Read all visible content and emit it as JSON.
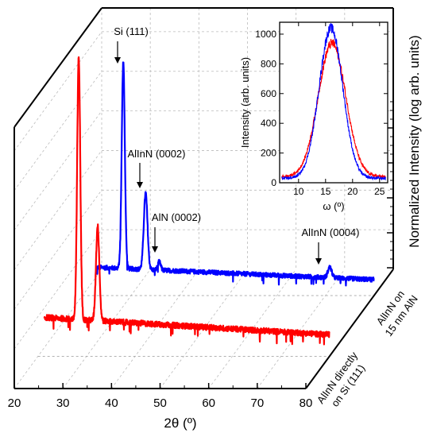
{
  "chart_data": {
    "type": "line",
    "subtype": "3d-waterfall",
    "xlabel": "2θ (º)",
    "ylabel": "Normalized Intensity (log arb. units)",
    "xlim": [
      20,
      80
    ],
    "x_ticks": [
      "20",
      "30",
      "40",
      "50",
      "60",
      "70",
      "80"
    ],
    "grid": true,
    "log_scale_y": true,
    "series": [
      {
        "name": "AlInN directly on Si (111)",
        "label_lines": [
          "AlInN directly",
          "on Si (111)"
        ],
        "color": "#ff0000",
        "baseline_noise": 0.15,
        "peaks": [
          {
            "x": 28.4,
            "height": 1.0,
            "width": 0.32
          },
          {
            "x": 32.3,
            "height": 0.36,
            "width": 0.35
          }
        ]
      },
      {
        "name": "AlInN on 15 nm AlN",
        "label_lines": [
          "AlInN on",
          "15 nm AlN"
        ],
        "color": "#0000ff",
        "baseline_noise": 0.14,
        "peaks": [
          {
            "x": 28.4,
            "height": 1.0,
            "width": 0.32
          },
          {
            "x": 33.0,
            "height": 0.37,
            "width": 0.38
          },
          {
            "x": 35.8,
            "height": 0.04,
            "width": 0.3
          },
          {
            "x": 70.9,
            "height": 0.05,
            "width": 0.4
          }
        ]
      }
    ],
    "annotations": [
      {
        "text": "Si (111)",
        "series": 1,
        "x": 28.4
      },
      {
        "text": "AlInN (0002)",
        "series": 1,
        "x": 33.0
      },
      {
        "text": "AlN (0002)",
        "series": 1,
        "x": 35.8
      },
      {
        "text": "AlInN (0004)",
        "series": 1,
        "x": 70.9
      }
    ],
    "inset": {
      "type": "line",
      "xlabel": "ω (º)",
      "ylabel": "Intensity (arb. units)",
      "xlim": [
        6.5,
        26.5
      ],
      "ylim": [
        0,
        1080
      ],
      "x_ticks": [
        10,
        15,
        20,
        25
      ],
      "y_ticks": [
        0,
        200,
        400,
        600,
        800,
        1000
      ],
      "series": [
        {
          "color": "#ff0000",
          "center": 16.2,
          "peak": 900,
          "fwhm": 6.0,
          "background": 40
        },
        {
          "color": "#0000ff",
          "center": 16.0,
          "peak": 1010,
          "fwhm": 5.2,
          "background": 30
        }
      ]
    }
  }
}
